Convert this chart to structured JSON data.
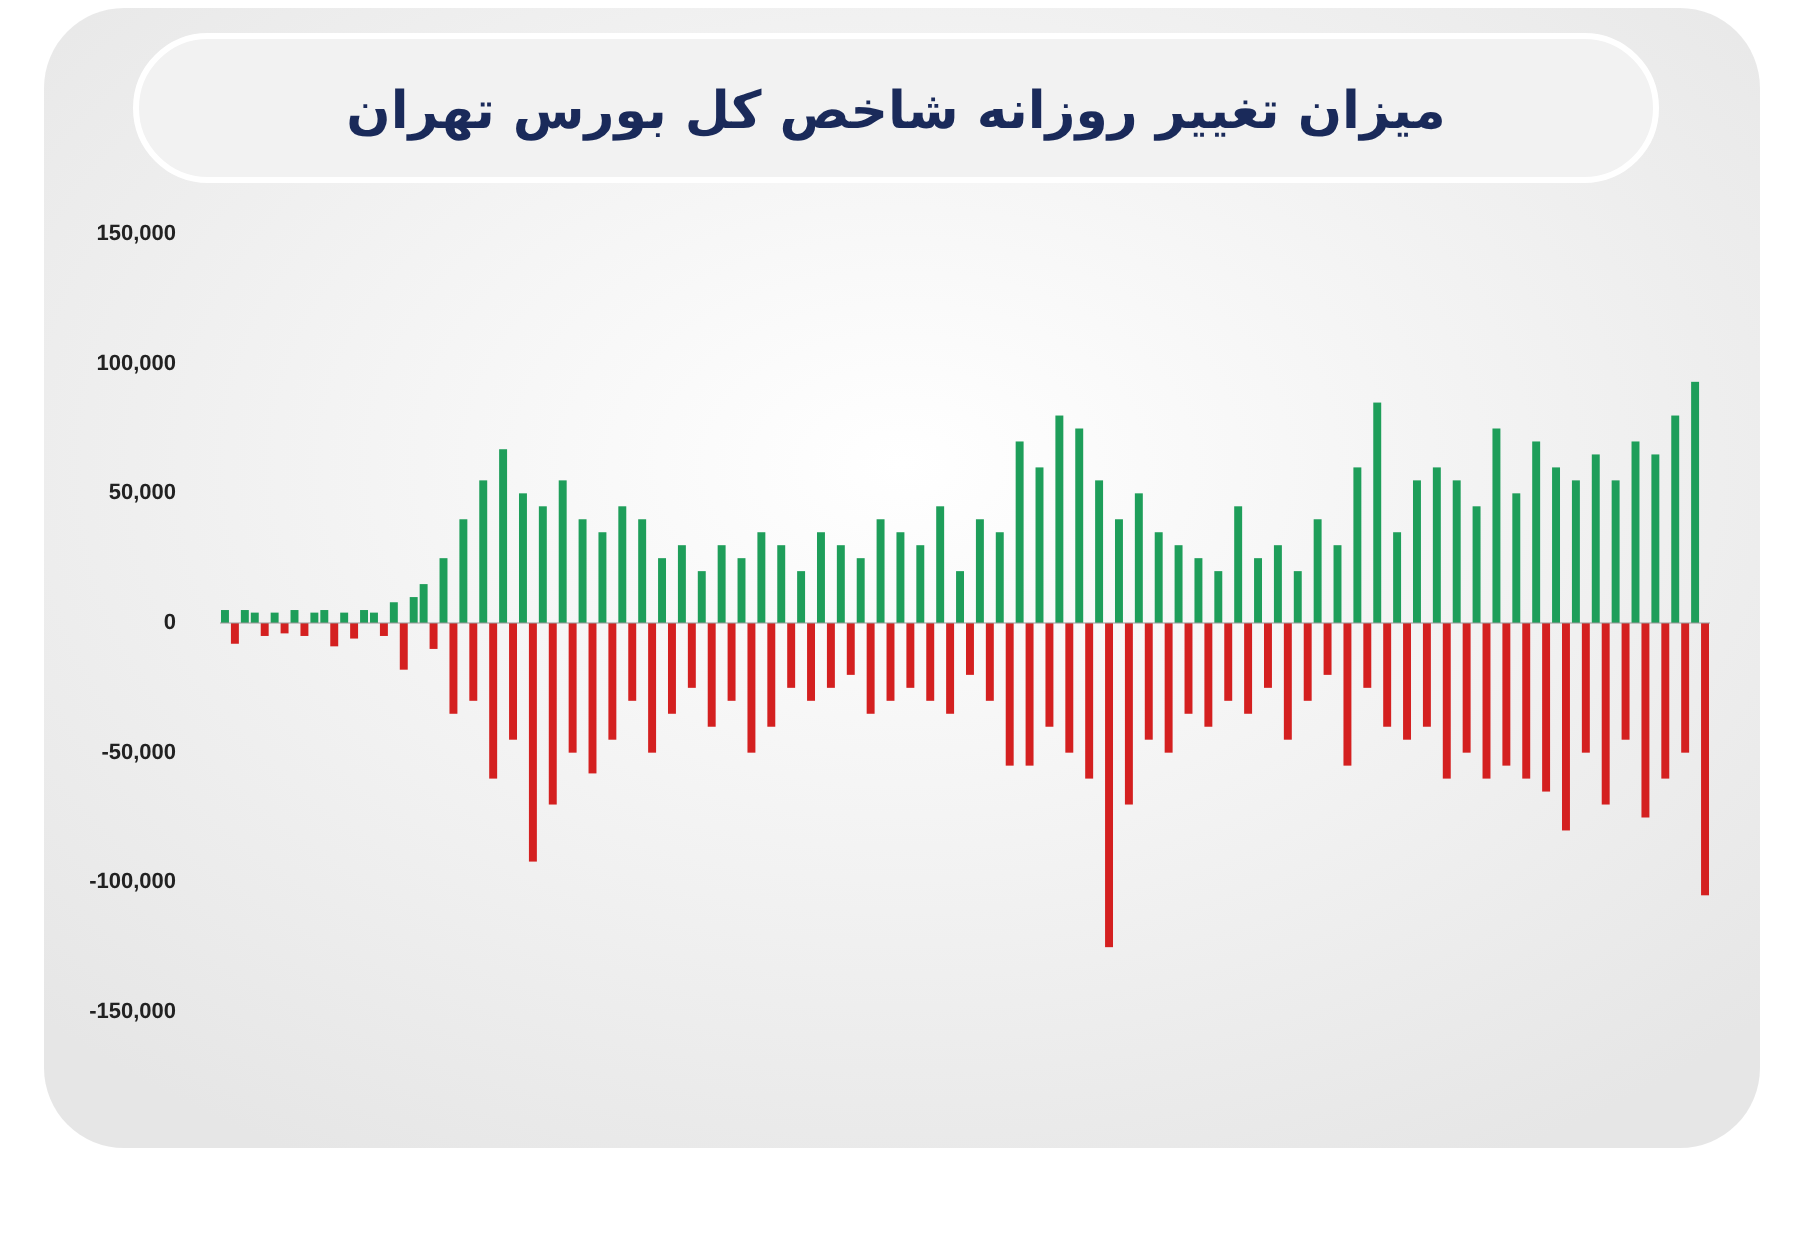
{
  "chart_data": {
    "type": "bar",
    "title": "میزان تغییر روزانه شاخص کل بورس تهران",
    "categories": [
      null,
      null,
      null,
      null,
      null,
      null,
      null,
      null,
      null,
      null,
      null,
      null,
      null,
      null,
      null,
      null,
      null,
      null,
      null,
      null,
      null,
      null,
      null,
      null,
      null,
      null,
      null,
      null,
      null,
      null,
      null,
      null,
      null,
      null,
      null,
      null,
      null,
      null,
      null,
      null,
      null,
      null,
      null,
      null,
      null,
      null,
      null,
      null,
      null,
      null,
      null,
      null,
      null,
      null,
      null,
      null,
      null,
      null,
      null,
      null,
      null,
      null,
      null,
      null,
      null,
      null,
      null,
      null,
      null,
      null,
      null,
      null,
      null,
      null,
      null,
      null,
      null,
      null,
      null,
      null,
      null,
      null,
      null,
      null,
      null,
      null,
      null,
      null,
      null,
      null,
      null,
      null,
      null,
      null,
      null,
      null,
      null,
      null,
      null,
      null,
      null,
      null,
      null,
      null,
      null,
      null,
      null,
      null,
      null,
      null,
      null,
      null,
      null,
      null,
      null,
      null,
      null,
      null,
      null,
      null,
      null,
      null,
      null,
      null,
      null,
      null,
      null,
      null,
      null,
      null,
      null,
      null,
      null,
      null,
      null,
      null,
      null,
      null,
      null,
      null,
      null,
      null,
      null,
      null,
      null,
      null,
      null,
      null,
      null,
      null
    ],
    "values": [
      5000,
      -8000,
      5000,
      4000,
      -5000,
      4000,
      -4000,
      5000,
      -5000,
      4000,
      5000,
      -9000,
      4000,
      -6000,
      5000,
      4000,
      -5000,
      8000,
      -18000,
      10000,
      15000,
      -10000,
      25000,
      -35000,
      40000,
      -30000,
      55000,
      -60000,
      67000,
      -45000,
      50000,
      -92000,
      45000,
      -70000,
      55000,
      -50000,
      40000,
      -58000,
      35000,
      -45000,
      45000,
      -30000,
      40000,
      -50000,
      25000,
      -35000,
      30000,
      -25000,
      20000,
      -40000,
      30000,
      -30000,
      25000,
      -50000,
      35000,
      -40000,
      30000,
      -25000,
      20000,
      -30000,
      35000,
      -25000,
      30000,
      -20000,
      25000,
      -35000,
      40000,
      -30000,
      35000,
      -25000,
      30000,
      -30000,
      45000,
      -35000,
      20000,
      -20000,
      40000,
      -30000,
      35000,
      -55000,
      70000,
      -55000,
      60000,
      -40000,
      80000,
      -50000,
      75000,
      -60000,
      55000,
      -125000,
      40000,
      -70000,
      50000,
      -45000,
      35000,
      -50000,
      30000,
      -35000,
      25000,
      -40000,
      20000,
      -30000,
      45000,
      -35000,
      25000,
      -25000,
      30000,
      -45000,
      20000,
      -30000,
      40000,
      -20000,
      30000,
      -55000,
      60000,
      -25000,
      85000,
      -40000,
      35000,
      -45000,
      55000,
      -40000,
      60000,
      -60000,
      55000,
      -50000,
      45000,
      -60000,
      75000,
      -55000,
      50000,
      -60000,
      70000,
      -65000,
      60000,
      -80000,
      55000,
      -50000,
      65000,
      -70000,
      55000,
      -45000,
      70000,
      -75000,
      65000,
      -60000,
      80000,
      -50000,
      93000,
      -105000
    ],
    "colors": [
      "#1e9e5a",
      "#d42020",
      "#1e9e5a",
      "#1e9e5a",
      "#d42020",
      "#1e9e5a",
      "#d42020",
      "#1e9e5a",
      "#d42020",
      "#1e9e5a",
      "#1e9e5a",
      "#d42020",
      "#1e9e5a",
      "#d42020",
      "#1e9e5a",
      "#1e9e5a",
      "#d42020",
      "#1e9e5a",
      "#d42020",
      "#1e9e5a",
      "#1e9e5a",
      "#d42020",
      "#1e9e5a",
      "#d42020",
      "#1e9e5a",
      "#d42020",
      "#1e9e5a",
      "#d42020",
      "#1e9e5a",
      "#d42020",
      "#1e9e5a",
      "#d42020",
      "#1e9e5a",
      "#d42020",
      "#1e9e5a",
      "#d42020",
      "#1e9e5a",
      "#d42020",
      "#1e9e5a",
      "#d42020",
      "#1e9e5a",
      "#d42020",
      "#1e9e5a",
      "#d42020",
      "#1e9e5a",
      "#d42020",
      "#1e9e5a",
      "#d42020",
      "#1e9e5a",
      "#d42020",
      "#1e9e5a",
      "#d42020",
      "#1e9e5a",
      "#d42020",
      "#1e9e5a",
      "#d42020",
      "#1e9e5a",
      "#d42020",
      "#1e9e5a",
      "#d42020",
      "#1e9e5a",
      "#d42020",
      "#1e9e5a",
      "#d42020",
      "#1e9e5a",
      "#d42020",
      "#1e9e5a",
      "#d42020",
      "#1e9e5a",
      "#d42020",
      "#1e9e5a",
      "#d42020",
      "#1e9e5a",
      "#d42020",
      "#1e9e5a",
      "#d42020",
      "#1e9e5a",
      "#d42020",
      "#1e9e5a",
      "#d42020",
      "#1e9e5a",
      "#d42020",
      "#1e9e5a",
      "#d42020",
      "#1e9e5a",
      "#d42020",
      "#1e9e5a",
      "#d42020",
      "#1e9e5a",
      "#d42020",
      "#1e9e5a",
      "#d42020",
      "#1e9e5a",
      "#d42020",
      "#1e9e5a",
      "#d42020",
      "#1e9e5a",
      "#d42020",
      "#1e9e5a",
      "#d42020",
      "#1e9e5a",
      "#d42020",
      "#1e9e5a",
      "#d42020",
      "#1e9e5a",
      "#d42020",
      "#1e9e5a",
      "#d42020",
      "#1e9e5a",
      "#d42020",
      "#1e9e5a",
      "#d42020",
      "#1e9e5a",
      "#d42020",
      "#1e9e5a",
      "#d42020",
      "#1e9e5a",
      "#d42020",
      "#1e9e5a",
      "#d42020",
      "#1e9e5a",
      "#d42020",
      "#1e9e5a",
      "#d42020",
      "#1e9e5a",
      "#d42020",
      "#1e9e5a",
      "#d42020",
      "#1e9e5a",
      "#d42020",
      "#1e9e5a",
      "#d42020",
      "#1e9e5a",
      "#d42020",
      "#1e9e5a",
      "#d42020",
      "#1e9e5a",
      "#d42020",
      "#1e9e5a",
      "#d42020",
      "#1e9e5a",
      "#d42020",
      "#1e9e5a",
      "#d42020",
      "#1e9e5a",
      "#d42020",
      "#1e9e5a",
      "#d42020",
      "#1e9e5a",
      "#d42020"
    ],
    "ylim": [
      -150000,
      150000
    ],
    "yticks": [
      {
        "value": 150000,
        "label": "150,000"
      },
      {
        "value": 100000,
        "label": "100,000"
      },
      {
        "value": 50000,
        "label": "50,000"
      },
      {
        "value": 0,
        "label": "0"
      },
      {
        "value": -50000,
        "label": "-50,000"
      },
      {
        "value": -100000,
        "label": "-100,000"
      },
      {
        "value": -150000,
        "label": "-150,000"
      }
    ],
    "ref_lines": [
      {
        "axis": "y",
        "value": 0,
        "color": "#999999"
      }
    ],
    "tick_labels": "y",
    "grid": false
  }
}
